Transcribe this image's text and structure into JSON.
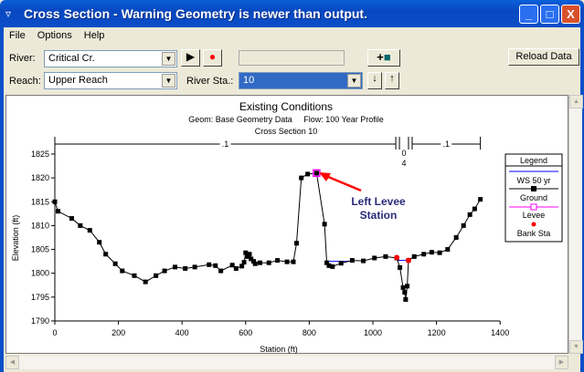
{
  "window": {
    "title": "Cross Section - Warning Geometry is newer than output.",
    "minimize": "_",
    "maximize": "□",
    "close": "X"
  },
  "menu": [
    "File",
    "Options",
    "Help"
  ],
  "toolbar": {
    "river_label": "River:",
    "river_value": "Critical Cr.",
    "reach_label": "Reach:",
    "reach_value": "Upper Reach",
    "station_label": "River Sta.:",
    "station_value": "10",
    "reload_label": "Reload Data",
    "plus": "+",
    "play_icon": "play-icon",
    "record_icon": "record-icon",
    "camera_icon": "camera-icon"
  },
  "chart_data": {
    "type": "line",
    "title": "Existing Conditions",
    "subtitle": "Geom: Base Geometry Data     Flow: 100 Year Profile",
    "subtitle2": "Cross Section 10",
    "xlabel": "Station (ft)",
    "ylabel": "Elevation (ft)",
    "xlim": [
      0,
      1400
    ],
    "ylim": [
      1790,
      1827
    ],
    "xticks": [
      "0",
      "200",
      "400",
      "600",
      "800",
      "1000",
      "1200",
      "1400"
    ],
    "yticks": [
      "1790",
      "1795",
      "1800",
      "1805",
      "1810",
      "1815",
      "1820",
      "1825"
    ],
    "ground": [
      [
        0,
        1815
      ],
      [
        10,
        1813
      ],
      [
        53,
        1811.5
      ],
      [
        80,
        1810
      ],
      [
        110,
        1809
      ],
      [
        140,
        1806.5
      ],
      [
        160,
        1804
      ],
      [
        190,
        1802
      ],
      [
        212,
        1800.5
      ],
      [
        250,
        1799.5
      ],
      [
        285,
        1798.2
      ],
      [
        318,
        1799.5
      ],
      [
        345,
        1800.5
      ],
      [
        378,
        1801.3
      ],
      [
        410,
        1801
      ],
      [
        440,
        1801.3
      ],
      [
        485,
        1801.8
      ],
      [
        505,
        1801.6
      ],
      [
        522,
        1800.5
      ],
      [
        558,
        1801.7
      ],
      [
        570,
        1801
      ],
      [
        588,
        1801.5
      ],
      [
        595,
        1802.3
      ],
      [
        600,
        1804.3
      ],
      [
        605,
        1803.5
      ],
      [
        612,
        1804
      ],
      [
        617,
        1803
      ],
      [
        625,
        1802.5
      ],
      [
        630,
        1802
      ],
      [
        645,
        1802.2
      ],
      [
        673,
        1802.2
      ],
      [
        700,
        1802.7
      ],
      [
        730,
        1802.4
      ],
      [
        750,
        1802.4
      ],
      [
        760,
        1806.3
      ],
      [
        775,
        1820
      ],
      [
        795,
        1820.8
      ],
      [
        823,
        1821
      ],
      [
        848,
        1810.3
      ],
      [
        855,
        1802.2
      ],
      [
        862,
        1801.6
      ],
      [
        873,
        1801.4
      ],
      [
        900,
        1802.1
      ],
      [
        935,
        1802.7
      ],
      [
        970,
        1802.6
      ],
      [
        1005,
        1803.2
      ],
      [
        1040,
        1803.5
      ],
      [
        1075,
        1803.2
      ],
      [
        1085,
        1801.2
      ],
      [
        1095,
        1797
      ],
      [
        1100,
        1796
      ],
      [
        1103,
        1794.5
      ],
      [
        1108,
        1797.3
      ],
      [
        1112,
        1802.7
      ],
      [
        1130,
        1803.5
      ],
      [
        1160,
        1804
      ],
      [
        1185,
        1804.4
      ],
      [
        1210,
        1804.3
      ],
      [
        1235,
        1805
      ],
      [
        1262,
        1807.5
      ],
      [
        1285,
        1810
      ],
      [
        1305,
        1812.3
      ],
      [
        1320,
        1813.5
      ],
      [
        1338,
        1815.5
      ]
    ],
    "water_surface": [
      [
        [
          855,
          1802.5
        ],
        [
          930,
          1802.5
        ]
      ],
      [
        [
          1075,
          1802.7
        ],
        [
          1112,
          1802.7
        ]
      ]
    ],
    "levee": [
      [
        823,
        1821
      ]
    ],
    "bank_stations": [
      [
        1075,
        1803.3
      ],
      [
        1112,
        1802.7
      ]
    ],
    "mannings_n": [
      {
        "from": 0,
        "to": 1072,
        "n": ".1"
      },
      {
        "from": 1072,
        "to": 1112,
        "n": "0"
      },
      {
        "from": 1112,
        "to": 1338,
        "n": ".1"
      }
    ],
    "mannings_n_sub": "4",
    "legend": {
      "title": "Legend",
      "items": [
        "WS 50 yr",
        "Ground",
        "Levee",
        "Bank Sta"
      ]
    },
    "annotation": {
      "line1": "Left Levee",
      "line2": "Station"
    },
    "colors": {
      "ws": "#0000ff",
      "ground": "#000000",
      "levee": "#ff00ff",
      "bank": "#ff0000",
      "annotation": "#2a2a7a",
      "arrow": "#ff0000"
    }
  }
}
